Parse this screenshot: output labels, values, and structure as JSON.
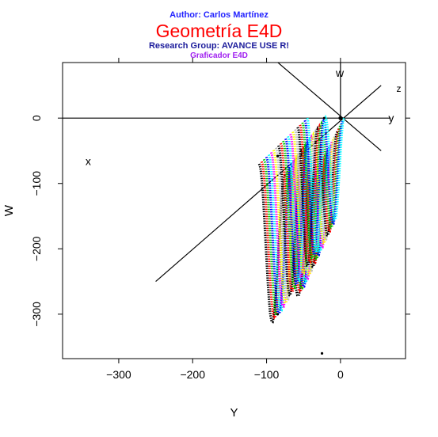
{
  "header": {
    "author": "Author: Carlos Martínez",
    "title": "Geometría E4D",
    "group": "Research Group: AVANCE USE R!",
    "subtitle": "Graficador E4D"
  },
  "colors": {
    "author": "#2323ff",
    "title": "#ff0000",
    "group": "#1b1b9b",
    "subtitle": "#a020f0",
    "palette": [
      "#000000",
      "#ff0000",
      "#00cd00",
      "#0000ff",
      "#00ffff",
      "#ff00ff",
      "#ffff00",
      "#bebebe"
    ]
  },
  "chart_data": {
    "type": "scatter",
    "title": "Geometría E4D",
    "xlabel": "Y",
    "ylabel": "W",
    "xlim": [
      -376,
      88
    ],
    "ylim": [
      -368,
      85
    ],
    "xticks": [
      -300,
      -200,
      -100,
      0
    ],
    "yticks": [
      0,
      -100,
      -200,
      -300
    ],
    "axis_labels_3d": {
      "x": "x",
      "y": "y",
      "z": "z",
      "w": "w"
    },
    "axes_3d": {
      "x_axis": {
        "from": [
          -250,
          -250
        ],
        "to": [
          55,
          50
        ]
      },
      "z_axis": {
        "from": [
          -95,
          95
        ],
        "to": [
          55,
          -50
        ]
      },
      "w_axis": {
        "from": [
          0,
          0
        ],
        "to": [
          0,
          85
        ]
      },
      "y_axis": {
        "from": [
          -376,
          0
        ],
        "to": [
          68,
          0
        ]
      }
    },
    "surface_family": {
      "count": 21,
      "shift_per_step": [
        4,
        -3
      ],
      "first_curve": {
        "x_range": [
          -110,
          -40
        ],
        "w_base": -70,
        "dip_depth": 0.96
      },
      "last_curve": {
        "x_range": [
          -45,
          5
        ],
        "w_base": 0,
        "dip_depth": 0.96
      },
      "low_points": [
        [
          -85,
          -300
        ],
        [
          -25,
          -360
        ]
      ],
      "high_points": [
        [
          -85,
          -58
        ],
        [
          -22,
          0
        ]
      ],
      "color_cycle": [
        "#000000",
        "#ff0000",
        "#00cd00",
        "#0000ff",
        "#00ffff",
        "#ff00ff",
        "#ffff00",
        "#bebebe"
      ]
    }
  }
}
